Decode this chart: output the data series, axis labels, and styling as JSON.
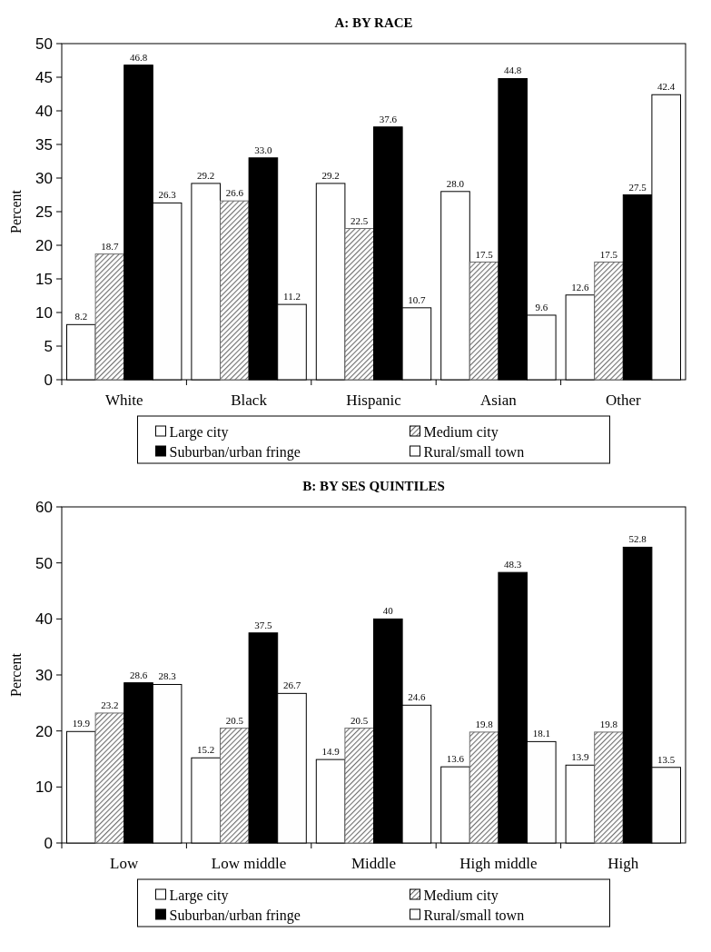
{
  "chart_data": [
    {
      "type": "bar",
      "title": "A: BY RACE",
      "ylabel": "Percent",
      "categories": [
        "White",
        "Black",
        "Hispanic",
        "Asian",
        "Other"
      ],
      "ylim": [
        0,
        50
      ],
      "yticks": [
        0,
        5,
        10,
        15,
        20,
        25,
        30,
        35,
        40,
        45,
        50
      ],
      "legend": "bottom",
      "data_labels": true,
      "grid": false,
      "series": [
        {
          "name": "Large city",
          "color": "#ffffff",
          "values": [
            8.2,
            29.2,
            29.2,
            28.0,
            12.6
          ],
          "value_labels": [
            "8.2",
            "29.2",
            "29.2",
            "28.0",
            "12.6"
          ]
        },
        {
          "name": "Medium city",
          "color": "#6e6e6e",
          "values": [
            18.7,
            26.6,
            22.5,
            17.5,
            17.5
          ],
          "value_labels": [
            "18.7",
            "26.6",
            "22.5",
            "17.5",
            "17.5"
          ]
        },
        {
          "name": "Suburban/urban fringe",
          "color": "#000000",
          "values": [
            46.8,
            33.0,
            37.6,
            44.8,
            27.5
          ],
          "value_labels": [
            "46.8",
            "33.0",
            "37.6",
            "44.8",
            "27.5"
          ]
        },
        {
          "name": "Rural/small town",
          "color": "#fefefe",
          "values": [
            26.3,
            11.2,
            10.7,
            9.6,
            42.4
          ],
          "value_labels": [
            "26.3",
            "11.2",
            "10.7",
            "9.6",
            "42.4"
          ]
        }
      ]
    },
    {
      "type": "bar",
      "title": "B: BY SES QUINTILES",
      "ylabel": "Percent",
      "categories": [
        "Low",
        "Low middle",
        "Middle",
        "High middle",
        "High"
      ],
      "ylim": [
        0,
        60
      ],
      "yticks": [
        0,
        10,
        20,
        30,
        40,
        50,
        60
      ],
      "legend": "bottom",
      "data_labels": true,
      "grid": false,
      "series": [
        {
          "name": "Large city",
          "color": "#ffffff",
          "values": [
            19.9,
            15.2,
            14.9,
            13.6,
            13.9
          ],
          "value_labels": [
            "19.9",
            "15.2",
            "14.9",
            "13.6",
            "13.9"
          ]
        },
        {
          "name": "Medium city",
          "color": "#6e6e6e",
          "values": [
            23.2,
            20.5,
            20.5,
            19.8,
            19.8
          ],
          "value_labels": [
            "23.2",
            "20.5",
            "20.5",
            "19.8",
            "19.8"
          ]
        },
        {
          "name": "Suburban/urban fringe",
          "color": "#000000",
          "values": [
            28.6,
            37.5,
            40,
            48.3,
            52.8
          ],
          "value_labels": [
            "28.6",
            "37.5",
            "40",
            "48.3",
            "52.8"
          ]
        },
        {
          "name": "Rural/small town",
          "color": "#fefefe",
          "values": [
            28.3,
            26.7,
            24.6,
            18.1,
            13.5
          ],
          "value_labels": [
            "28.3",
            "26.7",
            "24.6",
            "18.1",
            "13.5"
          ]
        }
      ]
    }
  ]
}
